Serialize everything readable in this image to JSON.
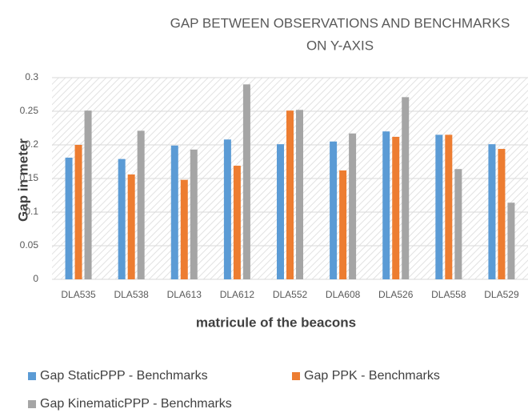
{
  "chart_data": {
    "type": "bar",
    "title": [
      "GAP BETWEEN OBSERVATIONS AND BENCHMARKS",
      "ON Y-AXIS"
    ],
    "x_label": "matricule of the beacons",
    "y_label": "Gap in meter",
    "categories": [
      "DLA535",
      "DLA538",
      "DLA613",
      "DLA612",
      "DLA552",
      "DLA608",
      "DLA526",
      "DLA558",
      "DLA529"
    ],
    "series": [
      {
        "name": "Gap StaticPPP - Benchmarks",
        "color": "#5b9bd5",
        "values": [
          0.181,
          0.179,
          0.199,
          0.208,
          0.201,
          0.205,
          0.22,
          0.215,
          0.201
        ]
      },
      {
        "name": "Gap PPK - Benchmarks",
        "color": "#ed7d31",
        "values": [
          0.2,
          0.156,
          0.148,
          0.169,
          0.251,
          0.162,
          0.212,
          0.215,
          0.194
        ]
      },
      {
        "name": "Gap KinematicPPP - Benchmarks",
        "color": "#a5a5a5",
        "values": [
          0.251,
          0.221,
          0.193,
          0.29,
          0.252,
          0.217,
          0.271,
          0.164,
          0.114
        ]
      }
    ],
    "ylim": [
      0,
      0.3
    ],
    "yticks": [
      0,
      0.05,
      0.1,
      0.15,
      0.2,
      0.25,
      0.3
    ],
    "grid": true,
    "legend": "bottom"
  }
}
